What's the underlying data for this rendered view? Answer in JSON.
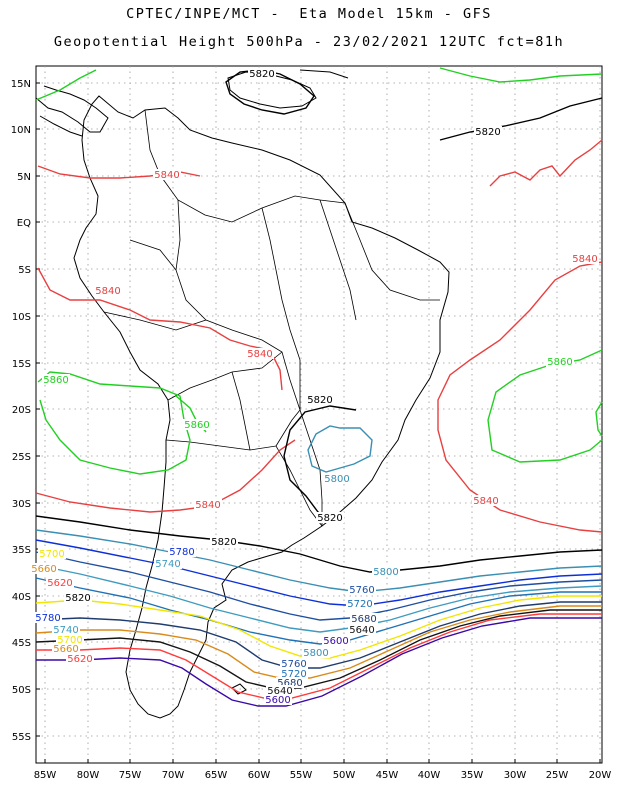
{
  "header": {
    "line1": "CPTEC/INPE/MCT -  Eta Model 15km - GFS",
    "line2": "Geopotential Height 500hPa - 23/02/2021 12UTC fct=81h"
  },
  "axes": {
    "lat_labels": [
      "15N",
      "10N",
      "5N",
      "EQ",
      "5S",
      "10S",
      "15S",
      "20S",
      "25S",
      "30S",
      "35S",
      "40S",
      "45S",
      "50S",
      "55S"
    ],
    "lon_labels": [
      "85W",
      "80W",
      "75W",
      "70W",
      "65W",
      "60W",
      "55W",
      "50W",
      "45W",
      "40W",
      "35W",
      "30W",
      "25W",
      "20W"
    ]
  },
  "colors": {
    "5600": "#3a0aa8",
    "5620": "#ff3b3b",
    "5640": "#141414",
    "5660": "#d98b1a",
    "5680": "#1f3c6e",
    "5700": "#f2e600",
    "5720": "#1f72b5",
    "5740": "#3f9bc0",
    "5760": "#1f4fa0",
    "5780": "#0d2fd8",
    "5800": "#3a8fb3",
    "5820": "#000000",
    "5840": "#e84040",
    "5860": "#22d022"
  },
  "contour_labels": [
    {
      "text": "5820",
      "color": "5820"
    },
    {
      "text": "5820",
      "color": "5820"
    },
    {
      "text": "5840",
      "color": "5840"
    },
    {
      "text": "5840",
      "color": "5840"
    },
    {
      "text": "5840",
      "color": "5840"
    },
    {
      "text": "5840",
      "color": "5840"
    },
    {
      "text": "5860",
      "color": "5860"
    },
    {
      "text": "5860",
      "color": "5860"
    },
    {
      "text": "5860",
      "color": "5860"
    },
    {
      "text": "5820",
      "color": "5820"
    },
    {
      "text": "5800",
      "color": "5800"
    },
    {
      "text": "5820",
      "color": "5820"
    },
    {
      "text": "5840",
      "color": "5840"
    },
    {
      "text": "5840",
      "color": "5840"
    },
    {
      "text": "5820",
      "color": "5820"
    },
    {
      "text": "5800",
      "color": "5800"
    },
    {
      "text": "5780",
      "color": "5780"
    },
    {
      "text": "5760",
      "color": "5760"
    },
    {
      "text": "5740",
      "color": "5740"
    },
    {
      "text": "5720",
      "color": "5720"
    },
    {
      "text": "5700",
      "color": "5700"
    },
    {
      "text": "5680",
      "color": "5680"
    },
    {
      "text": "5660",
      "color": "5660"
    },
    {
      "text": "5640",
      "color": "5640"
    },
    {
      "text": "5620",
      "color": "5620"
    },
    {
      "text": "5600",
      "color": "5600"
    },
    {
      "text": "5820",
      "color": "5820"
    },
    {
      "text": "5800",
      "color": "5800"
    },
    {
      "text": "5780",
      "color": "5780"
    },
    {
      "text": "5760",
      "color": "5760"
    },
    {
      "text": "5740",
      "color": "5740"
    },
    {
      "text": "5720",
      "color": "5720"
    },
    {
      "text": "5700",
      "color": "5700"
    },
    {
      "text": "5680",
      "color": "5680"
    },
    {
      "text": "5660",
      "color": "5660"
    },
    {
      "text": "5640",
      "color": "5640"
    },
    {
      "text": "5620",
      "color": "5620"
    },
    {
      "text": "5600",
      "color": "5600"
    }
  ]
}
